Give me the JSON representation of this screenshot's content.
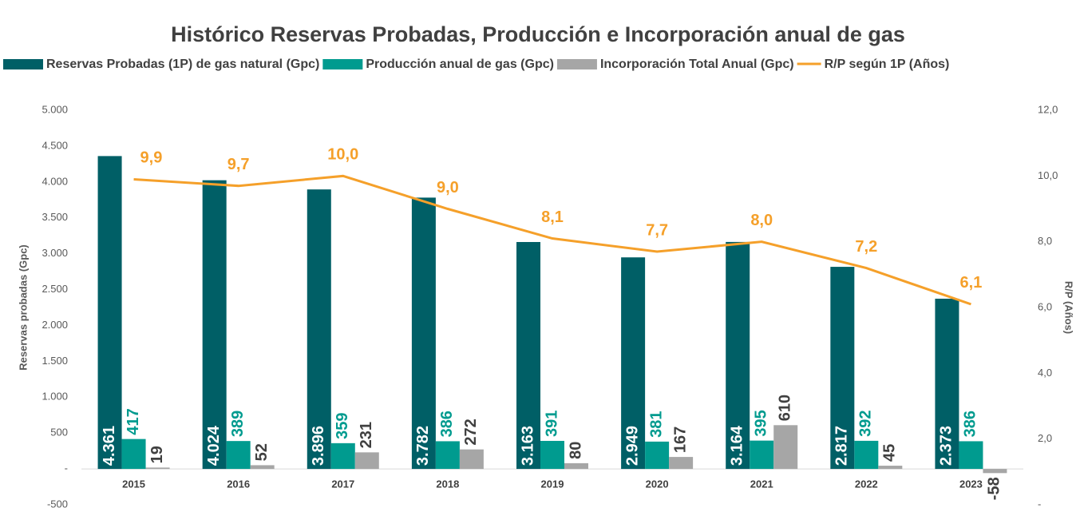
{
  "chart_data": {
    "type": "bar",
    "title": "Histórico Reservas Probadas, Producción e  Incorporación anual de gas",
    "ylabel": "Reservas probadas (Gpc)",
    "y2label": "R/P (Años)",
    "categories": [
      "2015",
      "2016",
      "2017",
      "2018",
      "2019",
      "2020",
      "2021",
      "2022",
      "2023"
    ],
    "series": [
      {
        "name": "Reservas Probadas (1P) de gas natural (Gpc)",
        "color": "#005f66",
        "type": "bar",
        "values": [
          4361,
          4024,
          3896,
          3782,
          3163,
          2949,
          3164,
          2817,
          2373
        ],
        "value_labels": [
          "4.361",
          "4.024",
          "3.896",
          "3.782",
          "3.163",
          "2.949",
          "3.164",
          "2.817",
          "2.373"
        ]
      },
      {
        "name": "Producción anual de gas (Gpc)",
        "color": "#009b8f",
        "type": "bar",
        "values": [
          417,
          389,
          359,
          386,
          391,
          381,
          395,
          392,
          386
        ]
      },
      {
        "name": "Incorporación Total Anual (Gpc)",
        "color": "#a6a6a6",
        "type": "bar",
        "values": [
          19,
          52,
          231,
          272,
          80,
          167,
          610,
          45,
          -58
        ]
      },
      {
        "name": "R/P según 1P (Años)",
        "color": "#f5a02a",
        "type": "line",
        "axis": "y2",
        "values": [
          9.9,
          9.7,
          10.0,
          9.0,
          8.1,
          7.7,
          8.0,
          7.2,
          6.1
        ],
        "value_labels": [
          "9,9",
          "9,7",
          "10,0",
          "9,0",
          "8,1",
          "7,7",
          "8,0",
          "7,2",
          "6,1"
        ]
      }
    ],
    "ylim": [
      -500,
      5000
    ],
    "yticks": [
      {
        "value": -500,
        "label": "-500"
      },
      {
        "value": 0,
        "label": "-"
      },
      500,
      {
        "value": 1000,
        "label": "1.000"
      },
      {
        "value": 1500,
        "label": "1.500"
      },
      {
        "value": 2000,
        "label": "2.000"
      },
      {
        "value": 2500,
        "label": "2.500"
      },
      {
        "value": 3000,
        "label": "3.000"
      },
      {
        "value": 3500,
        "label": "3.500"
      },
      {
        "value": 4000,
        "label": "4.000"
      },
      {
        "value": 4500,
        "label": "4.500"
      },
      {
        "value": 5000,
        "label": "5.000"
      }
    ],
    "y2lim": [
      0,
      12
    ],
    "y2ticks": [
      {
        "value": 0,
        "label": "-"
      },
      {
        "value": 2,
        "label": "2,0"
      },
      {
        "value": 4,
        "label": "4,0"
      },
      {
        "value": 6,
        "label": "6,0"
      },
      {
        "value": 8,
        "label": "8,0"
      },
      {
        "value": 10,
        "label": "10,0"
      },
      {
        "value": 12,
        "label": "12,0"
      }
    ],
    "legend": "top"
  }
}
